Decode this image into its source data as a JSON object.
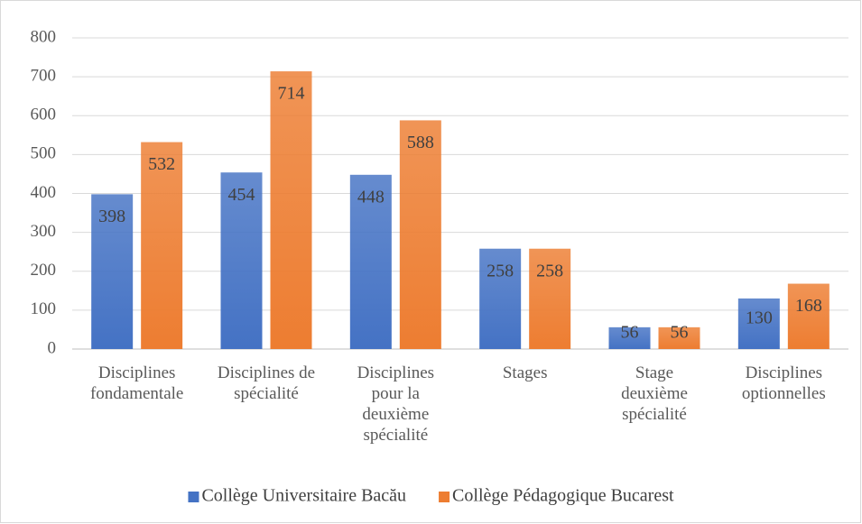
{
  "chart_data": {
    "type": "bar",
    "categories": [
      [
        "Disciplines",
        "fondamentale"
      ],
      [
        "Disciplines de",
        "spécialité"
      ],
      [
        "Disciplines",
        "pour la",
        "deuxième",
        "spécialité"
      ],
      [
        "Stages"
      ],
      [
        "Stage",
        "deuxième",
        "spécialité"
      ],
      [
        "Disciplines",
        "optionnelles"
      ]
    ],
    "series": [
      {
        "name": "Collège Universitaire Bacău",
        "color": "#4472c4",
        "values": [
          398,
          454,
          448,
          258,
          56,
          130
        ]
      },
      {
        "name": "Collège Pédagogique Bucarest",
        "color": "#ed7d31",
        "values": [
          532,
          714,
          588,
          258,
          56,
          168
        ]
      }
    ],
    "ylim": [
      0,
      800
    ],
    "yticks": [
      0,
      100,
      200,
      300,
      400,
      500,
      600,
      700,
      800
    ],
    "grid": true,
    "legend": "bottom"
  }
}
